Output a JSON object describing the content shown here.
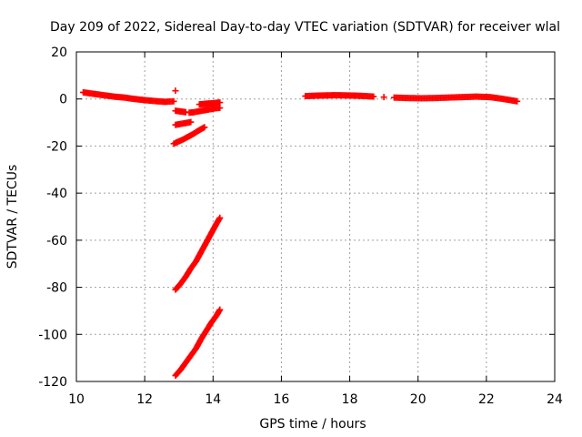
{
  "chart_data": {
    "type": "scatter",
    "title": "Day 209 of 2022, Sidereal Day-to-day VTEC variation (SDTVAR) for receiver wlal",
    "xlabel": "GPS time / hours",
    "ylabel": "SDTVAR / TECUs",
    "xlim": [
      10,
      24
    ],
    "ylim": [
      -120,
      20
    ],
    "x_ticks": [
      10,
      12,
      14,
      16,
      18,
      20,
      22,
      24
    ],
    "y_ticks": [
      -120,
      -100,
      -80,
      -60,
      -40,
      -20,
      0,
      20
    ],
    "grid": true,
    "marker": "plus",
    "color": "#ff0000",
    "series": [
      {
        "x": [
          10.2,
          10.5,
          10.8,
          11.1,
          11.4,
          11.7,
          12.0,
          12.3,
          12.6,
          12.85
        ],
        "y": [
          2.8,
          2.2,
          1.6,
          1.0,
          0.6,
          0.0,
          -0.5,
          -0.9,
          -1.2,
          -1.0
        ]
      },
      {
        "x": [
          12.9
        ],
        "y": [
          3.5
        ]
      },
      {
        "x": [
          12.9,
          13.0,
          13.1,
          13.2
        ],
        "y": [
          -5.0,
          -5.2,
          -5.4,
          -5.6
        ]
      },
      {
        "x": [
          13.3,
          13.45,
          13.6,
          13.75,
          13.9,
          14.05,
          14.2
        ],
        "y": [
          -5.8,
          -5.6,
          -5.2,
          -4.8,
          -4.4,
          -4.0,
          -3.8
        ]
      },
      {
        "x": [
          13.6,
          13.8,
          14.0,
          14.2
        ],
        "y": [
          -2.3,
          -2.0,
          -1.8,
          -1.5
        ]
      },
      {
        "x": [
          12.9,
          13.05,
          13.2,
          13.35
        ],
        "y": [
          -11.0,
          -10.6,
          -10.2,
          -9.8
        ]
      },
      {
        "x": [
          12.85,
          13.0,
          13.15,
          13.3,
          13.45,
          13.6,
          13.75
        ],
        "y": [
          -19.0,
          -18.0,
          -17.0,
          -15.8,
          -14.6,
          -13.2,
          -12.0
        ]
      },
      {
        "x": [
          12.9,
          13.05,
          13.2,
          13.35,
          13.5,
          13.65,
          13.8,
          13.95,
          14.1,
          14.2
        ],
        "y": [
          -81.0,
          -78.5,
          -75.5,
          -72.0,
          -69.0,
          -65.0,
          -61.0,
          -57.0,
          -53.0,
          -50.5
        ]
      },
      {
        "x": [
          12.9,
          13.05,
          13.2,
          13.35,
          13.5,
          13.65,
          13.8,
          13.95,
          14.1,
          14.2
        ],
        "y": [
          -117.5,
          -115.0,
          -112.0,
          -109.0,
          -106.0,
          -102.0,
          -98.5,
          -95.0,
          -92.0,
          -89.5
        ]
      },
      {
        "x": [
          16.7,
          17.0,
          17.3,
          17.6,
          17.9,
          18.2,
          18.5,
          18.7
        ],
        "y": [
          1.2,
          1.4,
          1.5,
          1.6,
          1.5,
          1.4,
          1.2,
          1.0
        ]
      },
      {
        "x": [
          19.0
        ],
        "y": [
          0.8
        ]
      },
      {
        "x": [
          19.3,
          19.7,
          20.1,
          20.5,
          20.9,
          21.3,
          21.7,
          22.1,
          22.5,
          22.9
        ],
        "y": [
          0.6,
          0.4,
          0.3,
          0.4,
          0.6,
          0.8,
          1.0,
          0.8,
          0.0,
          -1.0
        ]
      }
    ]
  }
}
